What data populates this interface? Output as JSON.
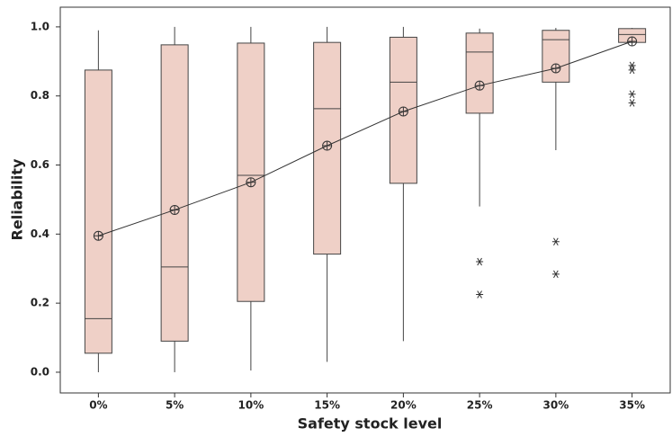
{
  "chart_data": {
    "type": "box",
    "xlabel": "Safety stock level",
    "ylabel": "Reliability",
    "categories": [
      "0%",
      "5%",
      "10%",
      "15%",
      "20%",
      "25%",
      "30%",
      "35%"
    ],
    "boxes": [
      {
        "min": 0.0,
        "q1": 0.055,
        "median": 0.155,
        "q3": 0.875,
        "max": 0.99,
        "mean": 0.395,
        "outliers": []
      },
      {
        "min": 0.0,
        "q1": 0.09,
        "median": 0.305,
        "q3": 0.948,
        "max": 1.0,
        "mean": 0.47,
        "outliers": []
      },
      {
        "min": 0.005,
        "q1": 0.205,
        "median": 0.57,
        "q3": 0.953,
        "max": 1.0,
        "mean": 0.55,
        "outliers": []
      },
      {
        "min": 0.03,
        "q1": 0.342,
        "median": 0.763,
        "q3": 0.955,
        "max": 1.0,
        "mean": 0.656,
        "outliers": []
      },
      {
        "min": 0.09,
        "q1": 0.547,
        "median": 0.84,
        "q3": 0.97,
        "max": 1.0,
        "mean": 0.755,
        "outliers": []
      },
      {
        "min": 0.48,
        "q1": 0.75,
        "median": 0.927,
        "q3": 0.982,
        "max": 0.995,
        "mean": 0.83,
        "outliers": [
          0.32,
          0.225
        ]
      },
      {
        "min": 0.643,
        "q1": 0.84,
        "median": 0.963,
        "q3": 0.99,
        "max": 0.997,
        "mean": 0.88,
        "outliers": [
          0.378,
          0.284
        ]
      },
      {
        "min": 0.955,
        "q1": 0.955,
        "median": 0.978,
        "q3": 0.995,
        "max": 0.997,
        "mean": 0.958,
        "outliers": [
          0.888,
          0.875,
          0.805,
          0.78
        ]
      }
    ],
    "color": "#efd0c7",
    "edge_color": "#444444",
    "ylim": [
      -0.06,
      1.057
    ],
    "yticks": [
      {
        "value": 0,
        "label": "0.0"
      },
      0.2,
      0.4,
      0.6,
      0.8,
      {
        "value": 1,
        "label": "1.0"
      }
    ],
    "grid": false
  }
}
